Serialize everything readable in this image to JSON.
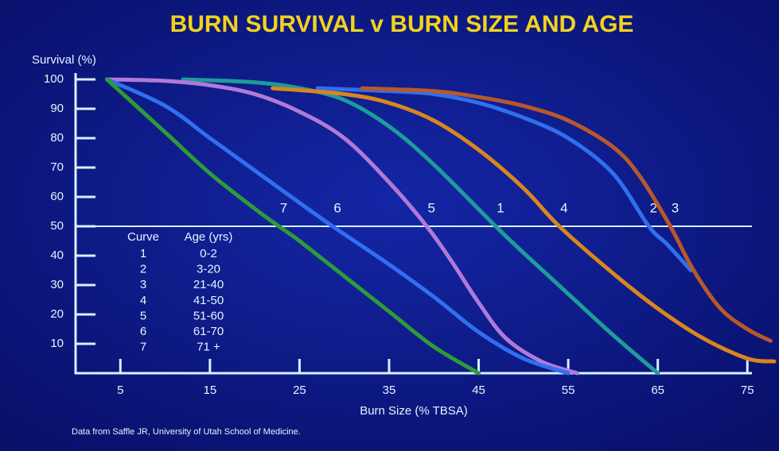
{
  "chart_data": {
    "type": "line",
    "title": "BURN SURVIVAL v BURN SIZE AND AGE",
    "y_label": "Survival (%)",
    "x_label": "Burn Size (% TBSA)",
    "source": "Data from Saffle JR, University of Utah School of Medicine.",
    "xlim": [
      0,
      78
    ],
    "ylim": [
      0,
      100
    ],
    "xticks": [
      5,
      15,
      25,
      35,
      45,
      55,
      65,
      75
    ],
    "yticks": [
      10,
      20,
      30,
      40,
      50,
      60,
      70,
      80,
      90,
      100
    ],
    "hline": 50,
    "legend_headers": [
      "Curve",
      "Age (yrs)"
    ],
    "series": [
      {
        "name": "1",
        "age": "0-2",
        "color": "#1d9c9a",
        "x": [
          12,
          20,
          25,
          30,
          35,
          40,
          46.9,
          50,
          55,
          60,
          65
        ],
        "values": [
          100,
          99,
          97,
          93,
          84,
          71,
          50,
          41,
          27,
          13,
          0
        ]
      },
      {
        "name": "2",
        "age": "3-20",
        "color": "#2f6ff0",
        "x": [
          27,
          35,
          40,
          45,
          50,
          55,
          60,
          64,
          66,
          68.7
        ],
        "values": [
          97,
          96,
          95,
          92,
          87,
          80,
          68,
          50,
          44,
          35
        ]
      },
      {
        "name": "3",
        "age": "21-40",
        "color": "#b8582a",
        "x": [
          32,
          40,
          45,
          50,
          55,
          60,
          63,
          66.4,
          69,
          72,
          75,
          77.6
        ],
        "values": [
          97,
          96,
          94,
          91,
          86,
          77,
          67,
          50,
          35,
          22,
          15,
          11
        ]
      },
      {
        "name": "4",
        "age": "41-50",
        "color": "#d8861e",
        "x": [
          22,
          30,
          35,
          40,
          45,
          50,
          54,
          60,
          65,
          70,
          75,
          78
        ],
        "values": [
          97,
          95,
          92,
          86,
          76,
          63,
          50,
          34,
          22,
          12,
          5,
          4
        ]
      },
      {
        "name": "5",
        "age": "51-60",
        "color": "#b07ad6",
        "x": [
          3.5,
          10,
          15,
          20,
          25,
          30,
          35,
          39.2,
          42,
          45,
          48,
          52,
          56
        ],
        "values": [
          100,
          99.5,
          98,
          95,
          89,
          80,
          65,
          50,
          38,
          24,
          12,
          4,
          0
        ]
      },
      {
        "name": "6",
        "age": "61-70",
        "color": "#2f6ff0",
        "x": [
          3.5,
          10,
          15,
          20,
          25,
          28.7,
          35,
          40,
          45,
          50,
          55
        ],
        "values": [
          100,
          91,
          80,
          69,
          58,
          50,
          37,
          26,
          14,
          5,
          0
        ]
      },
      {
        "name": "7",
        "age": "71 +",
        "color": "#2e9a3a",
        "x": [
          3.5,
          10,
          15,
          20,
          22.7,
          25,
          30,
          35,
          40,
          45
        ],
        "values": [
          100,
          82,
          68,
          56,
          50,
          45,
          33,
          21,
          9,
          0
        ]
      }
    ]
  }
}
